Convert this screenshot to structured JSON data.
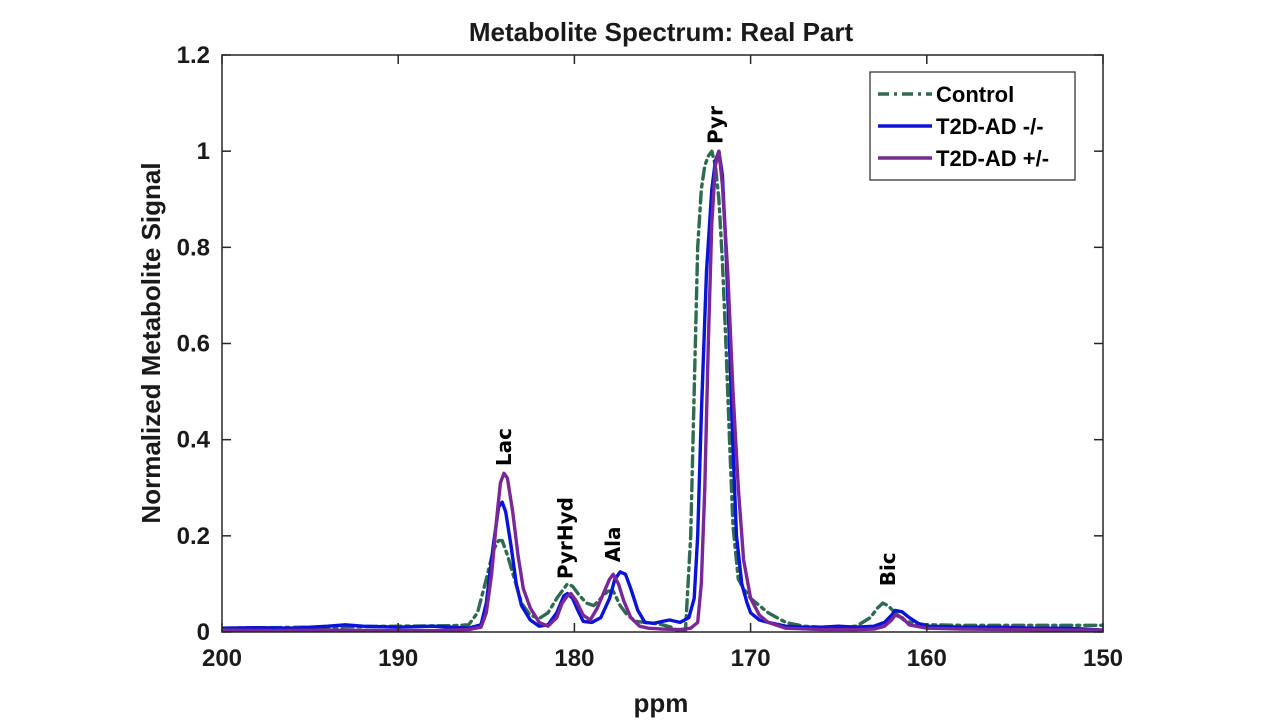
{
  "chart_data": {
    "type": "line",
    "title": "Metabolite Spectrum: Real Part",
    "xlabel": "ppm",
    "ylabel": "Normalized Metabolite Signal",
    "xlim": [
      200,
      150
    ],
    "x_reversed": true,
    "ylim": [
      0,
      1.2
    ],
    "xticks": [
      200,
      190,
      180,
      170,
      160,
      150
    ],
    "yticks": [
      0,
      0.2,
      0.4,
      0.6,
      0.8,
      1,
      1.2
    ],
    "xtick_labels": [
      "200",
      "190",
      "180",
      "170",
      "160",
      "150"
    ],
    "ytick_labels": [
      "0",
      "0.2",
      "0.4",
      "0.6",
      "0.8",
      "1",
      "1.2"
    ],
    "grid": false,
    "legend_position": "top-right",
    "annotations": [
      {
        "text": "Lac",
        "x": 184.0,
        "y": 0.345
      },
      {
        "text": "PyrHyd",
        "x": 180.5,
        "y": 0.11
      },
      {
        "text": "Ala",
        "x": 177.8,
        "y": 0.145
      },
      {
        "text": "Pyr",
        "x": 172.0,
        "y": 1.015
      },
      {
        "text": "Bic",
        "x": 162.2,
        "y": 0.095
      }
    ],
    "series": [
      {
        "name": "Control",
        "color": "#2e6b4f",
        "style": "dash-dot",
        "x": [
          200,
          195,
          190,
          187,
          186,
          185.5,
          185,
          184.6,
          184.3,
          184.1,
          183.8,
          183.4,
          183,
          182.5,
          182,
          181.5,
          181,
          180.6,
          180.4,
          180.1,
          179.7,
          179.3,
          178.9,
          178.5,
          178.1,
          177.8,
          177.4,
          177,
          176.5,
          176,
          175.5,
          175,
          174.5,
          174,
          173.7,
          173.4,
          173.2,
          173,
          172.8,
          172.6,
          172.4,
          172.2,
          172,
          171.8,
          171.6,
          171.4,
          171.2,
          171,
          170.7,
          170.4,
          170,
          169.5,
          169,
          168,
          167,
          166,
          165,
          164,
          163.2,
          162.8,
          162.5,
          162.2,
          161.8,
          161.3,
          160.8,
          160,
          158,
          155,
          152,
          150
        ],
        "y": [
          0.008,
          0.01,
          0.012,
          0.013,
          0.015,
          0.04,
          0.11,
          0.17,
          0.19,
          0.19,
          0.16,
          0.11,
          0.06,
          0.035,
          0.028,
          0.04,
          0.07,
          0.09,
          0.1,
          0.095,
          0.075,
          0.06,
          0.055,
          0.07,
          0.085,
          0.085,
          0.055,
          0.035,
          0.022,
          0.02,
          0.018,
          0.015,
          0.01,
          0.0,
          0.0,
          0.2,
          0.5,
          0.8,
          0.92,
          0.97,
          0.99,
          1.0,
          0.97,
          0.9,
          0.77,
          0.6,
          0.4,
          0.22,
          0.11,
          0.09,
          0.07,
          0.055,
          0.04,
          0.02,
          0.012,
          0.01,
          0.01,
          0.012,
          0.03,
          0.05,
          0.06,
          0.055,
          0.04,
          0.025,
          0.018,
          0.015,
          0.014,
          0.014,
          0.014,
          0.014
        ]
      },
      {
        "name": "T2D-AD -/-",
        "color": "#0a14d8",
        "style": "solid",
        "x": [
          200,
          198,
          196,
          194,
          193,
          192,
          190,
          188,
          187,
          186,
          185.3,
          185,
          184.6,
          184.3,
          184.1,
          183.9,
          183.6,
          183.3,
          183,
          182.5,
          182,
          181.5,
          181,
          180.6,
          180.4,
          180.1,
          179.8,
          179.5,
          179,
          178.5,
          178,
          177.7,
          177.4,
          177.1,
          176.8,
          176.4,
          176,
          175.5,
          175,
          174.6,
          174,
          173.5,
          173.2,
          173,
          172.8,
          172.5,
          172.2,
          172,
          171.8,
          171.6,
          171.4,
          171.2,
          171,
          170.8,
          170.5,
          170.2,
          170,
          169.5,
          169,
          168,
          167,
          166,
          165,
          164,
          163,
          162.4,
          162,
          161.8,
          161.4,
          161,
          160.5,
          160,
          158,
          156,
          154,
          152,
          151,
          150
        ],
        "y": [
          0.008,
          0.009,
          0.008,
          0.012,
          0.015,
          0.012,
          0.01,
          0.012,
          0.01,
          0.008,
          0.015,
          0.06,
          0.18,
          0.26,
          0.27,
          0.25,
          0.18,
          0.1,
          0.055,
          0.025,
          0.012,
          0.015,
          0.04,
          0.075,
          0.08,
          0.07,
          0.045,
          0.022,
          0.02,
          0.03,
          0.07,
          0.11,
          0.125,
          0.12,
          0.09,
          0.045,
          0.02,
          0.018,
          0.022,
          0.025,
          0.02,
          0.03,
          0.07,
          0.2,
          0.45,
          0.75,
          0.92,
          0.98,
          1.0,
          0.95,
          0.8,
          0.6,
          0.38,
          0.2,
          0.1,
          0.06,
          0.04,
          0.025,
          0.02,
          0.012,
          0.01,
          0.01,
          0.012,
          0.01,
          0.012,
          0.02,
          0.035,
          0.045,
          0.042,
          0.03,
          0.018,
          0.012,
          0.01,
          0.01,
          0.008,
          0.008,
          0.006,
          0.004
        ]
      },
      {
        "name": "T2D-AD +/-",
        "color": "#7a2896",
        "style": "solid",
        "x": [
          200,
          197,
          194,
          191,
          188,
          186,
          185.3,
          185,
          184.7,
          184.4,
          184.2,
          184,
          183.8,
          183.5,
          183.2,
          182.9,
          182.5,
          182,
          181.5,
          181,
          180.7,
          180.4,
          180.2,
          179.9,
          179.5,
          179.1,
          178.7,
          178.3,
          178,
          177.8,
          177.5,
          177.2,
          176.8,
          176.3,
          175.8,
          175,
          174,
          173.4,
          173,
          172.8,
          172.6,
          172.4,
          172.2,
          172,
          171.8,
          171.6,
          171.3,
          171,
          170.7,
          170.4,
          170,
          169.5,
          169,
          168,
          166,
          164,
          163,
          162.4,
          162,
          161.8,
          161.4,
          161,
          160,
          158,
          155,
          152,
          150
        ],
        "y": [
          0.004,
          0.003,
          0.004,
          0.003,
          0.003,
          0.005,
          0.01,
          0.04,
          0.12,
          0.24,
          0.31,
          0.33,
          0.32,
          0.25,
          0.16,
          0.09,
          0.05,
          0.02,
          0.012,
          0.03,
          0.06,
          0.075,
          0.08,
          0.065,
          0.035,
          0.025,
          0.05,
          0.085,
          0.11,
          0.12,
          0.1,
          0.065,
          0.03,
          0.012,
          0.008,
          0.006,
          0.005,
          0.008,
          0.02,
          0.1,
          0.3,
          0.6,
          0.85,
          0.97,
          1.0,
          0.93,
          0.75,
          0.5,
          0.3,
          0.15,
          0.07,
          0.035,
          0.02,
          0.008,
          0.005,
          0.005,
          0.006,
          0.012,
          0.025,
          0.035,
          0.03,
          0.015,
          0.008,
          0.006,
          0.005,
          0.004,
          0.004
        ]
      }
    ]
  }
}
